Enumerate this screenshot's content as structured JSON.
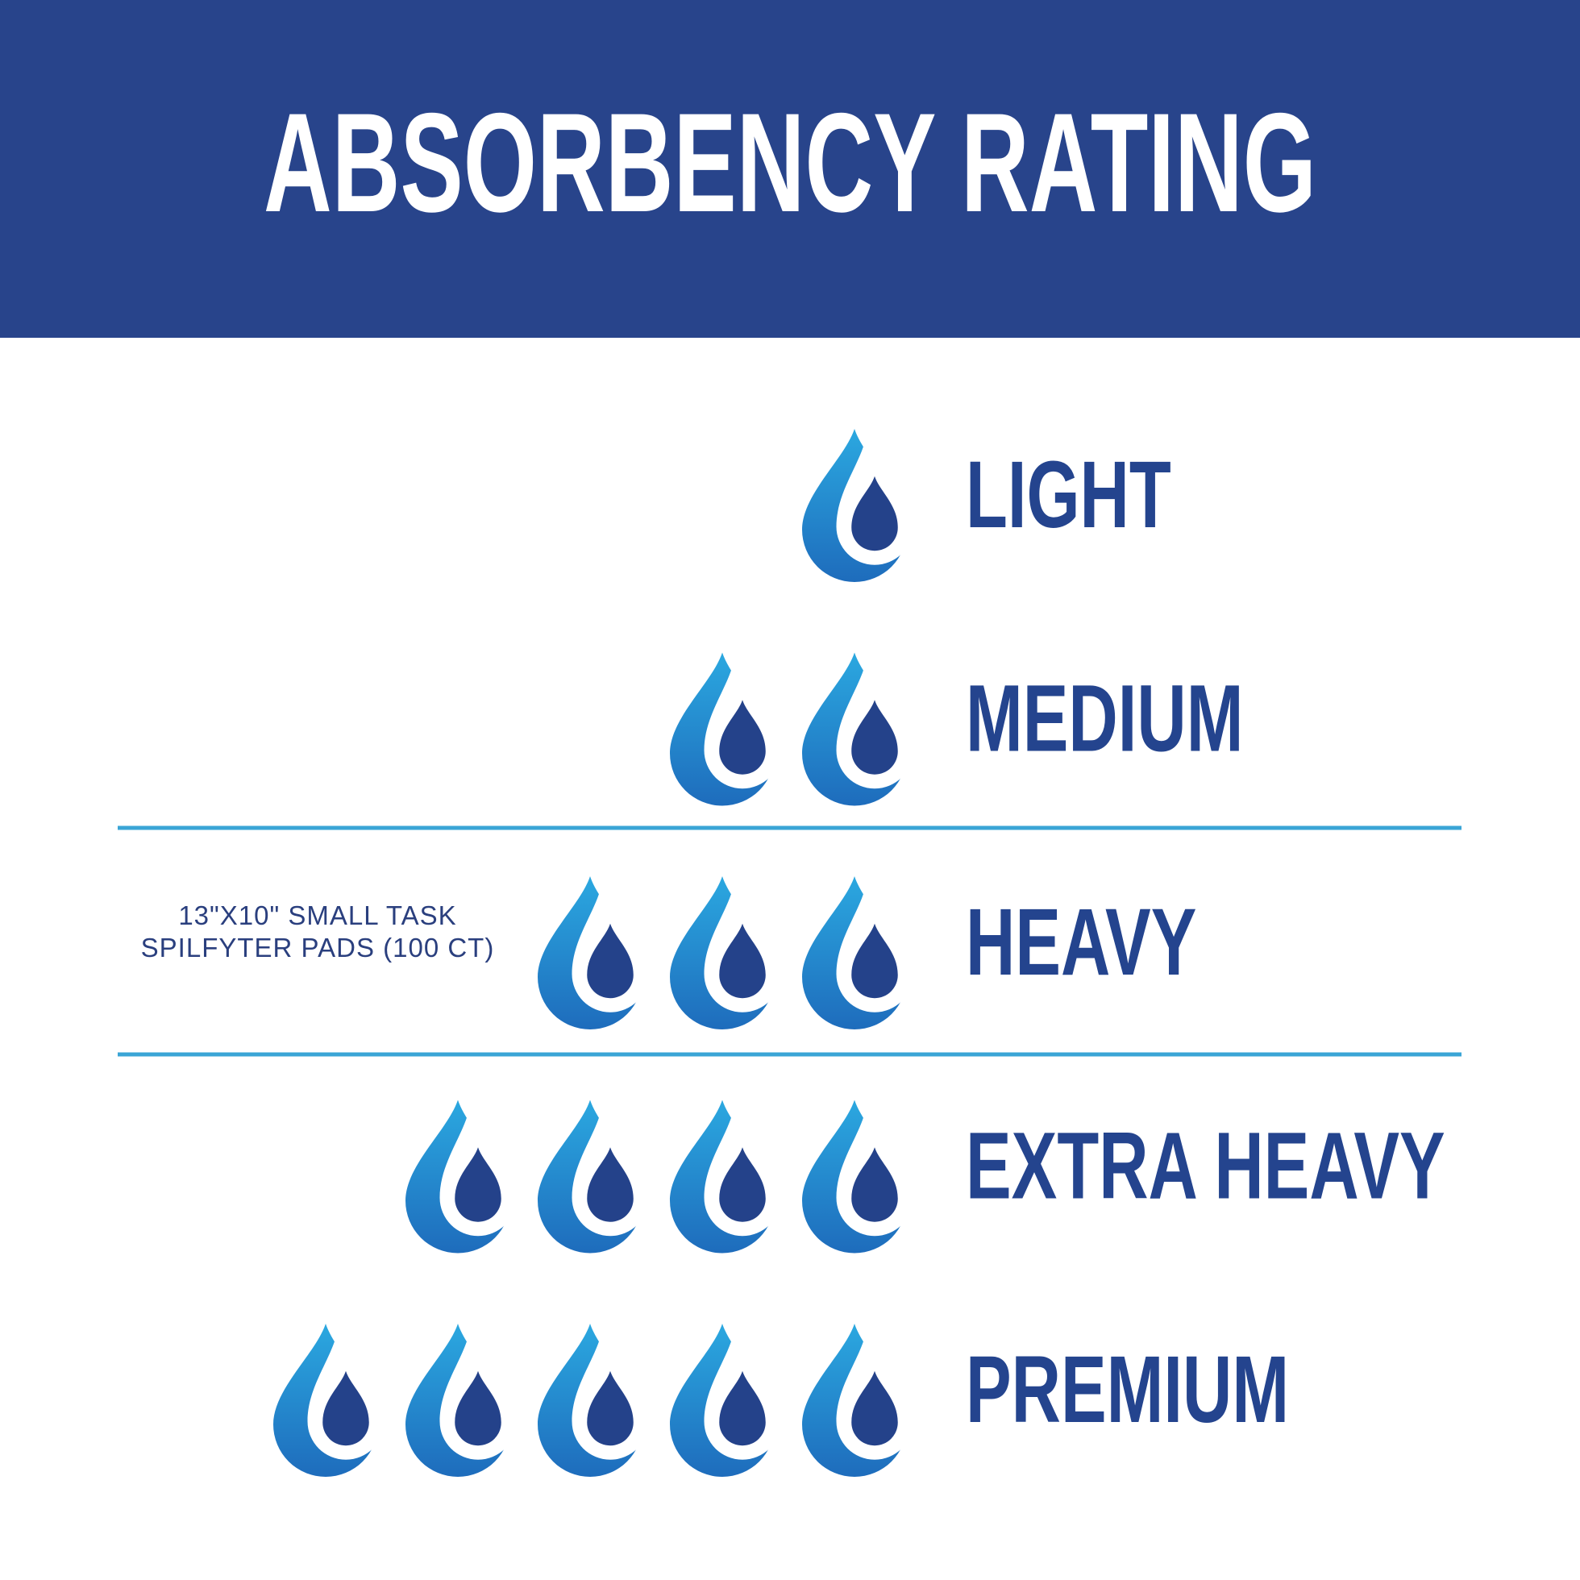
{
  "header": {
    "title": "ABSORBENCY RATING"
  },
  "levels": [
    {
      "label": "LIGHT",
      "drops": 1
    },
    {
      "label": "MEDIUM",
      "drops": 2
    },
    {
      "label": "HEAVY",
      "drops": 3,
      "note": [
        "13\"X10\" SMALL TASK",
        "SPILFYTER PADS (100 CT)"
      ]
    },
    {
      "label": "EXTRA HEAVY",
      "drops": 4
    },
    {
      "label": "PREMIUM",
      "drops": 5
    }
  ]
}
